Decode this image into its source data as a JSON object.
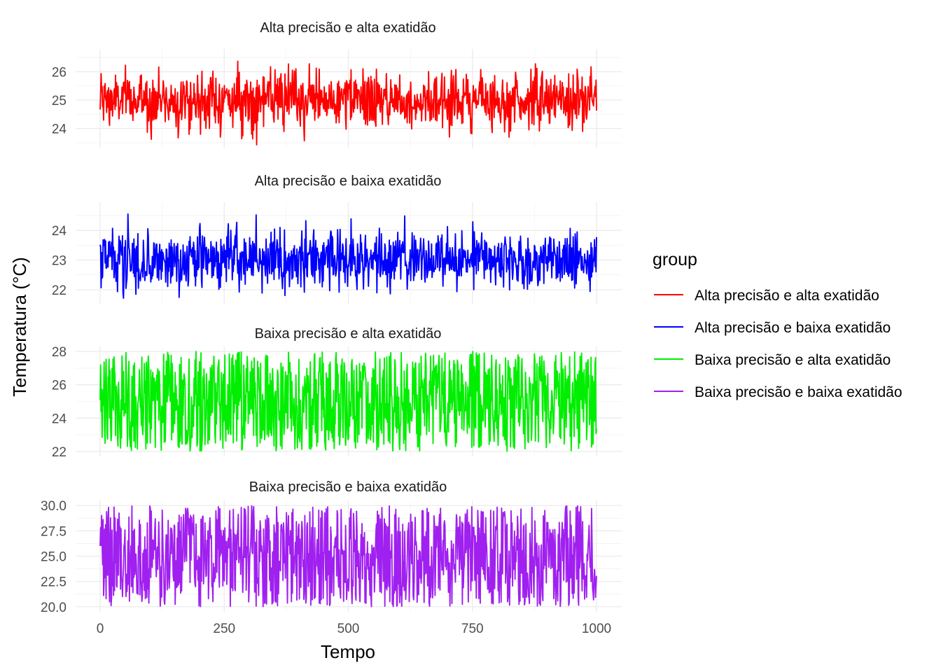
{
  "chart_data": {
    "type": "line",
    "ylabel": "Temperatura (°C)",
    "xlabel": "Tempo",
    "xlim": [
      0,
      1000
    ],
    "x_ticks": [
      0,
      250,
      500,
      750,
      1000
    ],
    "x_tick_labels": [
      "0",
      "250",
      "500",
      "750",
      "1000"
    ],
    "n_points": 1000,
    "grid": true,
    "legend": {
      "title": "group",
      "placement": "right",
      "entries": [
        "Alta precisão e alta exatidão",
        "Alta precisão e baixa exatidão",
        "Baixa precisão e alta exatidão",
        "Baixa precisão e baixa exatidão"
      ]
    },
    "panels": [
      {
        "title": "Alta precisão e alta exatidão",
        "series_name": "Alta precisão e alta exatidão",
        "color": "#ff0000",
        "distribution": "normal",
        "mean": 25.0,
        "sd": 0.5,
        "y_min": 23.4,
        "y_max": 26.6,
        "ylim": [
          23.3,
          26.8
        ],
        "y_ticks": [
          24,
          25,
          26
        ],
        "y_tick_labels": [
          "24",
          "25",
          "26"
        ]
      },
      {
        "title": "Alta precisão e baixa exatidão",
        "series_name": "Alta precisão e baixa exatidão",
        "color": "#0000ff",
        "distribution": "normal",
        "mean": 23.0,
        "sd": 0.5,
        "y_min": 21.5,
        "y_max": 24.8,
        "ylim": [
          21.5,
          24.95
        ],
        "y_ticks": [
          22,
          23,
          24
        ],
        "y_tick_labels": [
          "22",
          "23",
          "24"
        ]
      },
      {
        "title": "Baixa precisão e alta exatidão",
        "series_name": "Baixa precisão e alta exatidão",
        "color": "#00ee00",
        "distribution": "uniform",
        "mean": 25.0,
        "y_min": 22.0,
        "y_max": 28.0,
        "ylim": [
          21.7,
          28.3
        ],
        "y_ticks": [
          22,
          24,
          26,
          28
        ],
        "y_tick_labels": [
          "22",
          "24",
          "26",
          "28"
        ]
      },
      {
        "title": "Baixa precisão e baixa exatidão",
        "series_name": "Baixa precisão e baixa exatidão",
        "color": "#a020f0",
        "distribution": "uniform",
        "mean": 25.0,
        "y_min": 20.0,
        "y_max": 30.0,
        "ylim": [
          19.5,
          30.5
        ],
        "y_ticks": [
          20.0,
          22.5,
          25.0,
          27.5,
          30.0
        ],
        "y_tick_labels": [
          "20.0",
          "22.5",
          "25.0",
          "27.5",
          "30.0"
        ]
      }
    ]
  }
}
